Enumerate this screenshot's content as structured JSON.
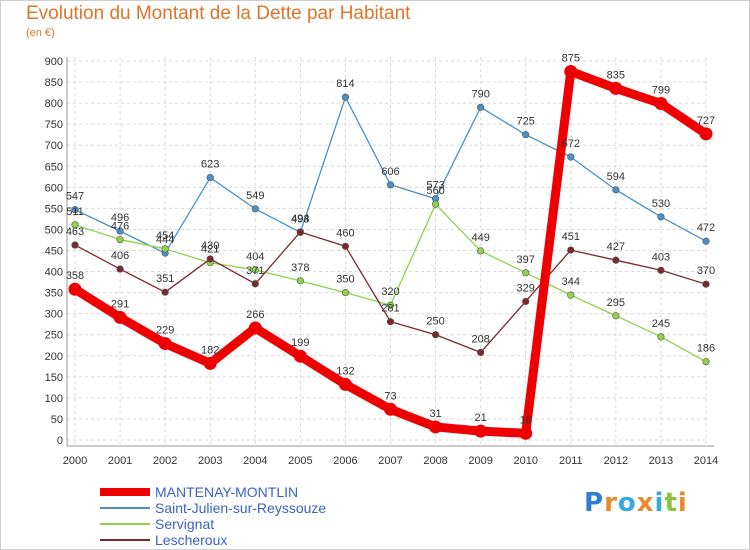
{
  "header": {
    "title": "Evolution du Montant de la Dette par Habitant",
    "subtitle": "(en €)"
  },
  "logo": {
    "letters": [
      "P",
      "r",
      "o",
      "x",
      "i",
      "t",
      "i"
    ],
    "colors": [
      "#2f7fd0",
      "#e8892c",
      "#36a9e1",
      "#e8892c",
      "#36a9e1",
      "#8ac43f",
      "#e8892c"
    ]
  },
  "chart_data": {
    "type": "line",
    "title": "Evolution du Montant de la Dette par Habitant",
    "subtitle": "(en €)",
    "x": [
      "2000",
      "2001",
      "2002",
      "2003",
      "2004",
      "2005",
      "2006",
      "2007",
      "2008",
      "2009",
      "2010",
      "2011",
      "2012",
      "2013",
      "2014"
    ],
    "ylim": [
      0,
      900
    ],
    "yticks": [
      "0",
      "50",
      "100",
      "150",
      "200",
      "250",
      "300",
      "350",
      "400",
      "450",
      "500",
      "550",
      "600",
      "650",
      "700",
      "750",
      "800",
      "850",
      "900"
    ],
    "grid": true,
    "legend_position": "bottom-left",
    "series": [
      {
        "name": "MANTENAY-MONTLIN",
        "color": "#ee0000",
        "values": [
          358,
          291,
          229,
          182,
          266,
          199,
          132,
          73,
          31,
          21,
          16,
          875,
          835,
          799,
          727
        ],
        "labels": [
          "358",
          "291",
          "229",
          "182",
          "266",
          "199",
          "132",
          "73",
          "31",
          "21",
          "16",
          "875",
          "835",
          "799",
          "727"
        ]
      },
      {
        "name": "Saint-Julien-sur-Reyssouze",
        "color": "#4a90c8",
        "values": [
          547,
          496,
          444,
          623,
          549,
          493,
          814,
          606,
          573,
          790,
          725,
          672,
          594,
          530,
          472
        ],
        "labels": [
          "547",
          "496",
          "444",
          "623",
          "549",
          "493",
          "814",
          "606",
          "573",
          "790",
          "725",
          "672",
          "594",
          "530",
          "472"
        ]
      },
      {
        "name": "Servignat",
        "color": "#8ed34a",
        "values": [
          511,
          476,
          454,
          421,
          404,
          378,
          350,
          320,
          560,
          449,
          397,
          344,
          295,
          245,
          186
        ],
        "labels": [
          "511",
          "476",
          "454",
          "421",
          "404",
          "378",
          "350",
          "320",
          "560",
          "449",
          "397",
          "344",
          "295",
          "245",
          "186"
        ]
      },
      {
        "name": "Lescheroux",
        "color": "#7a2a2e",
        "values": [
          463,
          406,
          351,
          430,
          371,
          494,
          460,
          281,
          250,
          208,
          329,
          451,
          427,
          403,
          370
        ],
        "labels": [
          "463",
          "406",
          "351",
          "430",
          "371",
          "494",
          "460",
          "281",
          "250",
          "208",
          "329",
          "451",
          "427",
          "403",
          "370"
        ]
      }
    ]
  }
}
